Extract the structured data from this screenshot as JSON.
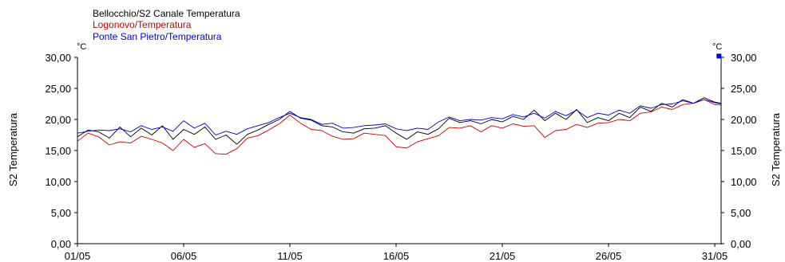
{
  "chart_data": {
    "type": "line",
    "unit": "°C",
    "ylabel_left": "S2 Temperatura",
    "ylabel_right": "S2 Temperatura",
    "ylim": [
      0,
      30
    ],
    "yticks": [
      "0,00",
      "5,00",
      "10,00",
      "15,00",
      "20,00",
      "25,00",
      "30,00"
    ],
    "ytick_values": [
      0,
      5,
      10,
      15,
      20,
      25,
      30
    ],
    "xlim": [
      1.0,
      31.3
    ],
    "xticks": [
      "01/05",
      "06/05",
      "11/05",
      "16/05",
      "21/05",
      "26/05",
      "31/05"
    ],
    "xtick_values": [
      1,
      6,
      11,
      16,
      21,
      26,
      31
    ],
    "grid": false,
    "legend_placement": "top-left",
    "marker": {
      "x": 31.2,
      "y": 30.2,
      "color": "#0000cc"
    },
    "series": [
      {
        "name": "Bellocchio/S2 Canale Temperatura",
        "color": "#000000",
        "x": [
          1.0,
          1.5,
          2.0,
          2.5,
          3.0,
          3.5,
          4.0,
          4.5,
          5.0,
          5.5,
          6.0,
          6.5,
          7.0,
          7.5,
          8.0,
          8.5,
          9.0,
          9.5,
          10.0,
          10.5,
          11.0,
          11.5,
          12.0,
          12.5,
          13.0,
          13.5,
          14.0,
          14.5,
          15.0,
          15.5,
          16.0,
          16.5,
          17.0,
          17.5,
          18.0,
          18.5,
          19.0,
          19.5,
          20.0,
          20.5,
          21.0,
          21.5,
          22.0,
          22.5,
          23.0,
          23.5,
          24.0,
          24.5,
          25.0,
          25.5,
          26.0,
          26.5,
          27.0,
          27.5,
          28.0,
          28.5,
          29.0,
          29.5,
          30.0,
          30.5,
          31.0,
          31.3
        ],
        "y": [
          17.2,
          18.3,
          18.0,
          17.0,
          18.8,
          17.2,
          18.6,
          17.5,
          19.0,
          16.8,
          18.4,
          17.6,
          18.8,
          16.8,
          17.5,
          16.0,
          17.6,
          18.3,
          19.2,
          20.0,
          21.3,
          20.2,
          19.9,
          19.0,
          18.8,
          18.0,
          17.8,
          18.5,
          18.6,
          19.0,
          17.8,
          16.8,
          18.0,
          17.6,
          18.5,
          20.2,
          19.5,
          19.8,
          19.3,
          20.0,
          19.6,
          20.5,
          20.0,
          21.5,
          19.8,
          21.0,
          20.0,
          21.6,
          19.5,
          20.3,
          19.8,
          21.0,
          20.3,
          22.0,
          21.3,
          22.6,
          22.0,
          23.2,
          22.6,
          23.5,
          22.8,
          22.6
        ]
      },
      {
        "name": "Logonovo/Temperatura",
        "color": "#cc0000",
        "x": [
          1.0,
          1.5,
          2.0,
          2.5,
          3.0,
          3.5,
          4.0,
          4.5,
          5.0,
          5.5,
          6.0,
          6.5,
          7.0,
          7.5,
          8.0,
          8.5,
          9.0,
          9.5,
          10.0,
          10.5,
          11.0,
          11.5,
          12.0,
          12.5,
          13.0,
          13.5,
          14.0,
          14.5,
          15.0,
          15.5,
          16.0,
          16.5,
          17.0,
          17.5,
          18.0,
          18.5,
          19.0,
          19.5,
          20.0,
          20.5,
          21.0,
          21.5,
          22.0,
          22.5,
          23.0,
          23.5,
          24.0,
          24.5,
          25.0,
          25.5,
          26.0,
          26.5,
          27.0,
          27.5,
          28.0,
          28.5,
          29.0,
          29.5,
          30.0,
          30.5,
          31.0,
          31.3
        ],
        "y": [
          16.5,
          17.8,
          17.2,
          15.9,
          16.4,
          16.2,
          17.3,
          16.8,
          16.2,
          15.0,
          16.8,
          15.5,
          16.1,
          14.5,
          14.4,
          15.3,
          17.0,
          17.4,
          18.3,
          19.3,
          20.7,
          19.4,
          18.4,
          18.2,
          17.3,
          16.8,
          16.9,
          17.8,
          17.6,
          17.4,
          15.6,
          15.4,
          16.4,
          16.9,
          17.4,
          18.7,
          18.6,
          19.0,
          18.0,
          19.0,
          18.6,
          19.3,
          18.9,
          19.0,
          17.1,
          18.2,
          18.4,
          19.2,
          18.7,
          19.4,
          19.5,
          20.0,
          19.8,
          21.0,
          21.2,
          22.0,
          21.6,
          22.4,
          22.6,
          23.2,
          22.4,
          22.3
        ]
      },
      {
        "name": "Ponte San Pietro/Temperatura",
        "color": "#0000cc",
        "x": [
          1.0,
          1.5,
          2.0,
          2.5,
          3.0,
          3.5,
          4.0,
          4.5,
          5.0,
          5.5,
          6.0,
          6.5,
          7.0,
          7.5,
          8.0,
          8.5,
          9.0,
          9.5,
          10.0,
          10.5,
          11.0,
          11.5,
          12.0,
          12.5,
          13.0,
          13.5,
          14.0,
          14.5,
          15.0,
          15.5,
          16.0,
          16.5,
          17.0,
          17.5,
          18.0,
          18.5,
          19.0,
          19.5,
          20.0,
          20.5,
          21.0,
          21.5,
          22.0,
          22.5,
          23.0,
          23.5,
          24.0,
          24.5,
          25.0,
          25.5,
          26.0,
          26.5,
          27.0,
          27.5,
          28.0,
          28.5,
          29.0,
          29.5,
          30.0,
          30.5,
          31.0,
          31.3
        ],
        "y": [
          17.8,
          18.1,
          18.3,
          18.2,
          18.5,
          18.0,
          19.0,
          18.4,
          18.8,
          18.1,
          19.8,
          18.6,
          19.4,
          17.5,
          18.1,
          17.6,
          18.5,
          19.0,
          19.5,
          20.3,
          21.0,
          20.3,
          20.0,
          19.2,
          19.4,
          18.6,
          18.7,
          19.0,
          19.1,
          19.3,
          18.5,
          18.2,
          18.6,
          18.4,
          19.6,
          20.4,
          19.8,
          20.0,
          19.9,
          20.3,
          20.1,
          20.8,
          20.4,
          21.0,
          20.2,
          21.3,
          20.6,
          21.5,
          20.3,
          21.0,
          20.7,
          21.5,
          21.0,
          22.2,
          21.8,
          22.4,
          22.5,
          23.0,
          22.6,
          23.2,
          22.7,
          22.5
        ]
      }
    ]
  }
}
